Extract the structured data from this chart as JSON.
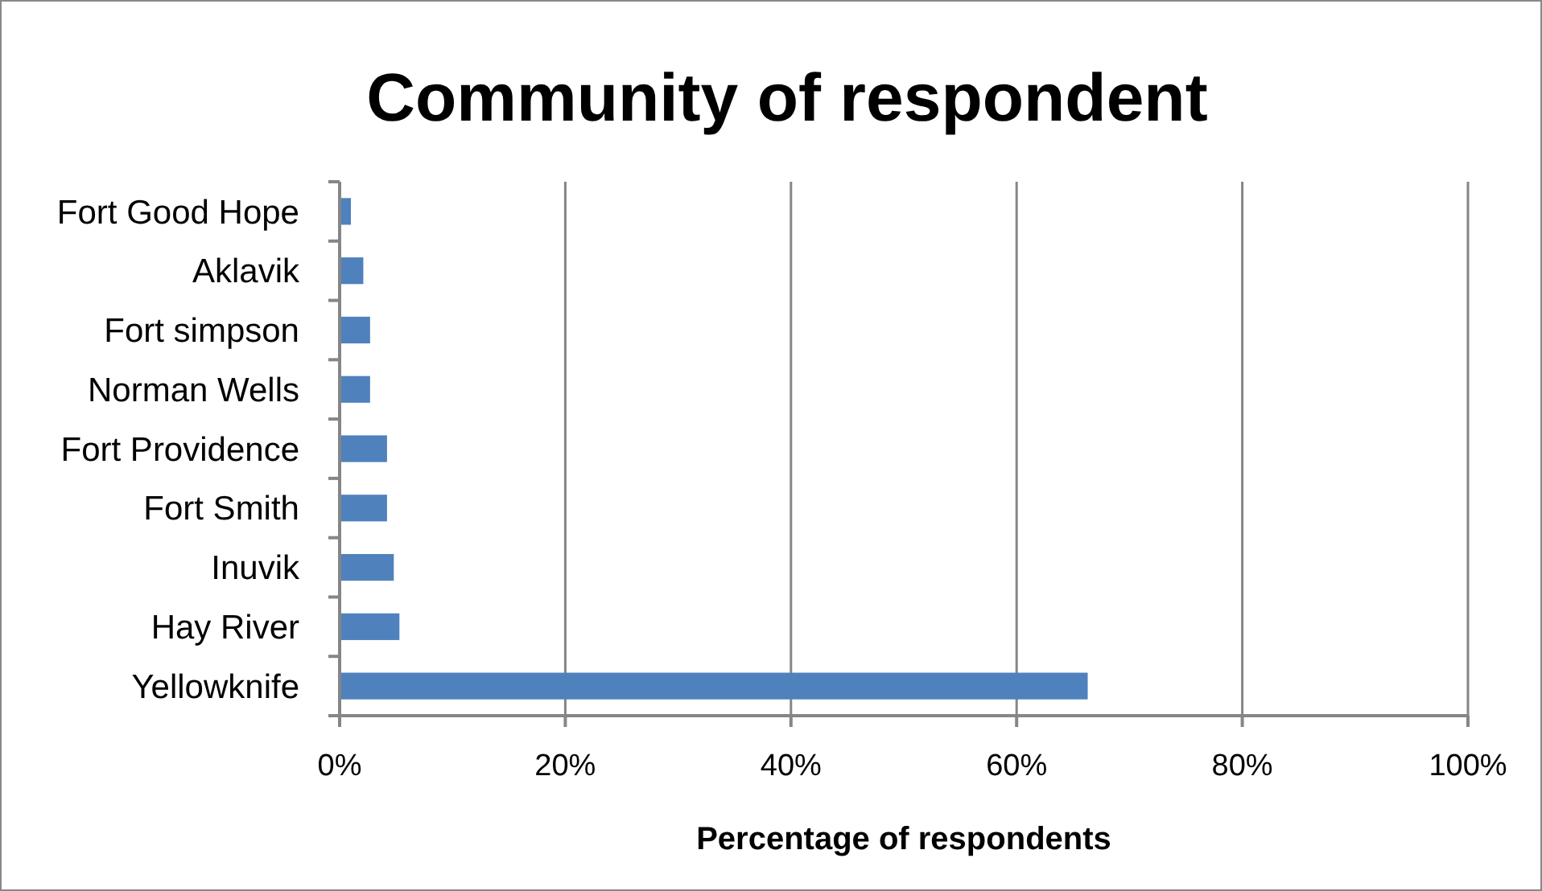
{
  "chart_data": {
    "type": "bar",
    "orientation": "horizontal",
    "title": "Community of respondent",
    "xlabel": "Percentage of respondents",
    "categories": [
      "Fort Good Hope",
      "Aklavik",
      "Fort simpson",
      "Norman Wells",
      "Fort Providence",
      "Fort Smith",
      "Inuvik",
      "Hay River",
      "Yellowknife"
    ],
    "values": [
      1.0,
      2.1,
      2.7,
      2.7,
      4.2,
      4.2,
      4.8,
      5.3,
      66.3
    ],
    "color": "#4f81bd",
    "xlim": [
      0,
      100
    ],
    "xticks": [
      {
        "value": 0,
        "label": "0%"
      },
      {
        "value": 20,
        "label": "20%"
      },
      {
        "value": 40,
        "label": "40%"
      },
      {
        "value": 60,
        "label": "60%"
      },
      {
        "value": 80,
        "label": "80%"
      },
      {
        "value": 100,
        "label": "100%"
      }
    ],
    "grid": "x"
  }
}
